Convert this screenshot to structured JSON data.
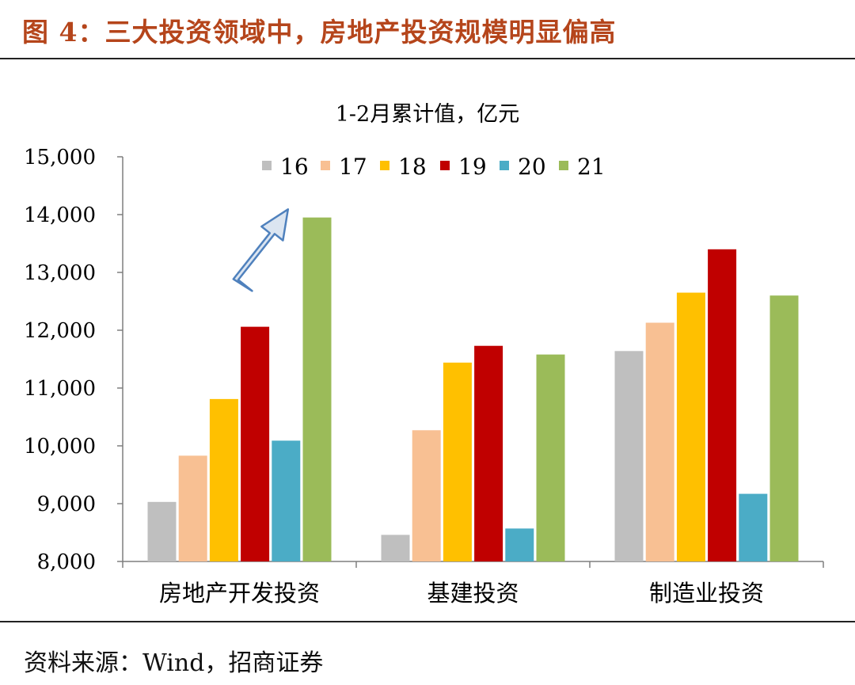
{
  "figure": {
    "title": "图 4：三大投资领域中，房地产投资规模明显偏高",
    "source": "资料来源：Wind，招商证券"
  },
  "chart_data": {
    "type": "bar",
    "title": "1-2月累计值，亿元",
    "xlabel": "",
    "ylabel": "",
    "categories": [
      "房地产开发投资",
      "基建投资",
      "制造业投资"
    ],
    "series": [
      {
        "name": "16",
        "color": "#bfbfbf",
        "values": [
          9030,
          8460,
          11640
        ]
      },
      {
        "name": "17",
        "color": "#f8c093",
        "values": [
          9830,
          10270,
          12130
        ]
      },
      {
        "name": "18",
        "color": "#ffc000",
        "values": [
          10810,
          11440,
          12650
        ]
      },
      {
        "name": "19",
        "color": "#c00000",
        "values": [
          12060,
          11730,
          13400
        ]
      },
      {
        "name": "20",
        "color": "#4bacc6",
        "values": [
          10090,
          8570,
          9170
        ]
      },
      {
        "name": "21",
        "color": "#9bbb59",
        "values": [
          13950,
          11580,
          12600
        ]
      }
    ],
    "ylim": [
      8000,
      15000
    ],
    "yticks": [
      "8,000",
      "9,000",
      "10,000",
      "11,000",
      "12,000",
      "13,000",
      "14,000",
      "15,000"
    ],
    "legend_position": "top",
    "grid": false,
    "annotation": "up-arrow pointing at 房地产开发投资 2021 bar"
  }
}
